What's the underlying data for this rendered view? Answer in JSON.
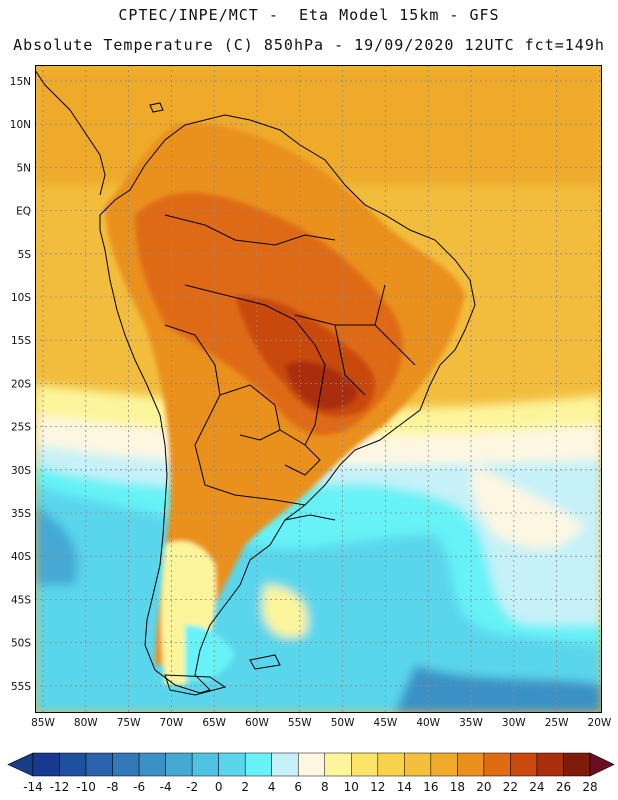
{
  "header": {
    "line1": "CPTEC/INPE/MCT -  Eta Model 15km - GFS",
    "line2": "Absolute Temperature (C) 850hPa - 19/09/2020 12UTC fct=149h"
  },
  "map": {
    "lat_labels": [
      "15N",
      "10N",
      "5N",
      "EQ",
      "5S",
      "10S",
      "15S",
      "20S",
      "25S",
      "30S",
      "35S",
      "40S",
      "45S",
      "50S",
      "55S"
    ],
    "lon_labels": [
      "85W",
      "80W",
      "75W",
      "70W",
      "65W",
      "60W",
      "55W",
      "50W",
      "45W",
      "40W",
      "35W",
      "30W",
      "25W",
      "20W"
    ]
  },
  "colorbar": {
    "labels": [
      "-14",
      "-12",
      "-10",
      "-8",
      "-6",
      "-4",
      "-2",
      "0",
      "2",
      "4",
      "6",
      "8",
      "10",
      "12",
      "14",
      "16",
      "18",
      "20",
      "22",
      "24",
      "26",
      "28"
    ],
    "colors": [
      "#17398f",
      "#1f4f9f",
      "#2b64ad",
      "#3379b8",
      "#3a91c6",
      "#45a9d4",
      "#4fc2e2",
      "#5ad6ec",
      "#66f2f7",
      "#c6f1f8",
      "#fdf7e2",
      "#fdf59c",
      "#fbe46a",
      "#f8d24b",
      "#f3bf3d",
      "#efaa2a",
      "#ea901f",
      "#df6b13",
      "#c9490f",
      "#aa2f0c",
      "#7f1c09"
    ],
    "low_color": "#173e82",
    "high_color": "#6c0d22"
  }
}
